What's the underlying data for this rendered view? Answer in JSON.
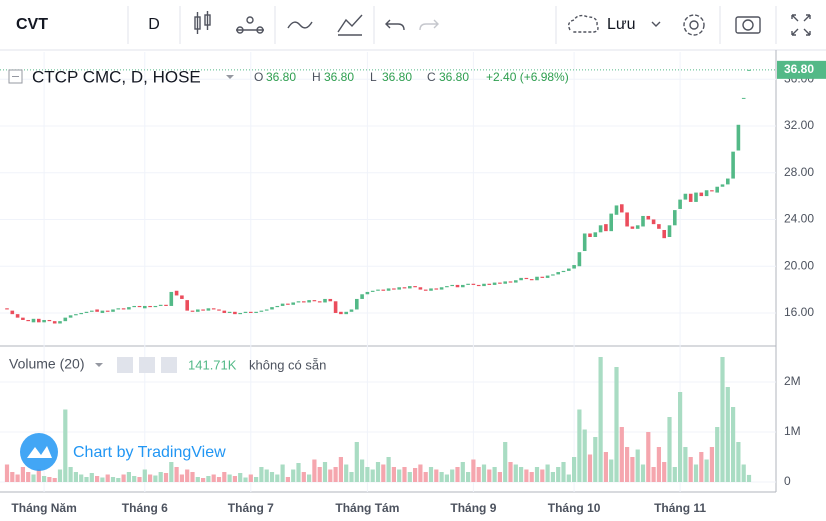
{
  "toolbar": {
    "symbol": "CVT",
    "interval": "D",
    "save": "Lưu"
  },
  "chart_data": {
    "type": "candlestick",
    "title": "CTCP CMC, D, HOSE",
    "legend": {
      "o": "O",
      "open": "36.80",
      "h": "H",
      "high": "36.80",
      "l": "L",
      "low": "36.80",
      "c": "C",
      "close": "36.80",
      "change": "+2.40 (+6.98%)"
    },
    "last_price_label": "36.80",
    "up_color": "#53b987",
    "down_color": "#eb4d5c",
    "categories": [
      null,
      null,
      null,
      null,
      null,
      null,
      null,
      "Tháng Năm",
      null,
      null,
      null,
      null,
      null,
      null,
      null,
      null,
      null,
      null,
      null,
      null,
      null,
      null,
      null,
      null,
      null,
      null,
      "Tháng 6",
      null,
      null,
      null,
      null,
      null,
      null,
      null,
      null,
      null,
      null,
      null,
      null,
      null,
      null,
      null,
      null,
      null,
      null,
      null,
      "Tháng 7",
      null,
      null,
      null,
      null,
      null,
      null,
      null,
      null,
      null,
      null,
      null,
      null,
      null,
      null,
      null,
      null,
      null,
      null,
      null,
      null,
      null,
      "Tháng Tám",
      null,
      null,
      null,
      null,
      null,
      null,
      null,
      null,
      null,
      null,
      null,
      null,
      null,
      null,
      null,
      null,
      null,
      null,
      null,
      "Tháng 9",
      null,
      null,
      null,
      null,
      null,
      null,
      null,
      null,
      null,
      null,
      null,
      null,
      null,
      null,
      null,
      null,
      null,
      null,
      "Tháng 10",
      null,
      null,
      null,
      null,
      null,
      null,
      null,
      null,
      null,
      null,
      null,
      null,
      null,
      null,
      null,
      null,
      null,
      null,
      null,
      "Tháng 11",
      null,
      null,
      null,
      null,
      null,
      null,
      null,
      null,
      null,
      null,
      null,
      null,
      null
    ],
    "open": [
      16.4,
      16.2,
      15.9,
      15.6,
      15.4,
      15.2,
      15.5,
      15.2,
      15.4,
      15.3,
      15.1,
      15.3,
      15.6,
      15.8,
      15.9,
      16.0,
      16.1,
      16.3,
      16.0,
      16.2,
      16.1,
      16.3,
      16.4,
      16.3,
      16.5,
      16.6,
      16.4,
      16.6,
      16.5,
      16.6,
      16.7,
      16.6,
      17.9,
      17.5,
      17.1,
      16.2,
      16.1,
      16.3,
      16.2,
      16.4,
      16.3,
      16.2,
      16.0,
      16.1,
      15.9,
      16.0,
      16.1,
      16.0,
      16.1,
      16.2,
      16.3,
      16.5,
      16.6,
      16.8,
      16.7,
      16.9,
      17.0,
      16.9,
      17.1,
      17.0,
      16.9,
      17.2,
      17.0,
      16.1,
      15.9,
      16.1,
      16.3,
      17.2,
      17.6,
      17.8,
      17.9,
      18.0,
      17.9,
      18.1,
      18.0,
      18.2,
      18.1,
      18.3,
      18.2,
      18.0,
      17.9,
      18.1,
      18.0,
      18.2,
      18.3,
      18.4,
      18.2,
      18.4,
      18.5,
      18.4,
      18.3,
      18.5,
      18.4,
      18.6,
      18.5,
      18.7,
      18.6,
      18.8,
      19.0,
      18.9,
      18.8,
      19.1,
      19.0,
      19.2,
      19.3,
      19.5,
      19.6,
      19.8,
      20.0,
      21.3,
      22.8,
      22.5,
      22.9,
      23.6,
      23.0,
      24.4,
      25.3,
      24.6,
      23.4,
      23.2,
      23.4,
      24.3,
      24.0,
      23.6,
      23.1,
      22.5,
      23.5,
      24.9,
      25.7,
      26.2,
      25.5,
      26.3,
      26.0,
      26.5,
      26.3,
      26.8,
      27.0,
      27.5,
      29.9,
      34.4,
      36.8
    ],
    "close": [
      16.3,
      15.9,
      15.6,
      15.4,
      15.3,
      15.5,
      15.2,
      15.4,
      15.3,
      15.1,
      15.3,
      15.6,
      15.8,
      15.9,
      16.0,
      16.1,
      16.2,
      16.1,
      16.2,
      16.1,
      16.3,
      16.4,
      16.3,
      16.5,
      16.6,
      16.5,
      16.6,
      16.5,
      16.6,
      16.7,
      16.6,
      17.8,
      17.5,
      17.2,
      16.2,
      16.1,
      16.3,
      16.2,
      16.4,
      16.3,
      16.2,
      16.0,
      16.1,
      15.9,
      16.0,
      16.1,
      16.0,
      16.1,
      16.2,
      16.3,
      16.5,
      16.6,
      16.8,
      16.7,
      16.9,
      17.0,
      16.9,
      17.1,
      17.0,
      16.9,
      17.2,
      17.0,
      16.0,
      15.9,
      16.1,
      16.3,
      17.2,
      17.6,
      17.8,
      17.9,
      18.0,
      17.9,
      18.1,
      18.0,
      18.2,
      18.1,
      18.3,
      18.2,
      18.0,
      17.9,
      18.1,
      18.0,
      18.2,
      18.3,
      18.4,
      18.2,
      18.4,
      18.5,
      18.4,
      18.3,
      18.5,
      18.4,
      18.6,
      18.5,
      18.7,
      18.6,
      18.8,
      19.0,
      18.9,
      18.8,
      19.1,
      19.0,
      19.2,
      19.3,
      19.5,
      19.6,
      19.8,
      20.1,
      21.2,
      22.8,
      22.5,
      22.9,
      23.5,
      23.0,
      24.5,
      25.2,
      24.6,
      23.4,
      23.2,
      23.5,
      24.3,
      24.0,
      23.6,
      23.2,
      22.4,
      23.5,
      24.8,
      25.7,
      26.2,
      25.5,
      26.3,
      26.0,
      26.5,
      26.4,
      26.8,
      27.0,
      27.5,
      29.8,
      32.1,
      34.4,
      36.8
    ],
    "ylim": [
      13.26,
      38.07
    ],
    "yticks": [
      {
        "value": 16,
        "label": "16.00"
      },
      {
        "value": 20,
        "label": "20.00"
      },
      {
        "value": 24,
        "label": "24.00"
      },
      {
        "value": 28,
        "label": "28.00"
      },
      {
        "value": 32,
        "label": "32.00"
      },
      {
        "value": 36,
        "label": "36.00"
      }
    ],
    "volume": {
      "title": "Volume (20)",
      "last": "141.71K",
      "status": "không có sẵn",
      "up_color": "#a9dcc3",
      "down_color": "#f5a6ae",
      "values": [
        350000,
        200000,
        150000,
        300000,
        200000,
        150000,
        250000,
        120000,
        100000,
        80000,
        250000,
        1450000,
        300000,
        200000,
        150000,
        100000,
        180000,
        120000,
        90000,
        150000,
        100000,
        80000,
        150000,
        200000,
        120000,
        100000,
        250000,
        150000,
        130000,
        200000,
        180000,
        400000,
        300000,
        150000,
        250000,
        200000,
        100000,
        80000,
        120000,
        150000,
        100000,
        200000,
        150000,
        120000,
        180000,
        90000,
        150000,
        100000,
        300000,
        250000,
        200000,
        150000,
        350000,
        100000,
        250000,
        380000,
        200000,
        150000,
        450000,
        300000,
        400000,
        250000,
        300000,
        500000,
        350000,
        200000,
        800000,
        450000,
        300000,
        250000,
        400000,
        350000,
        500000,
        300000,
        250000,
        300000,
        200000,
        280000,
        350000,
        200000,
        300000,
        250000,
        200000,
        150000,
        250000,
        300000,
        400000,
        200000,
        450000,
        300000,
        350000,
        250000,
        300000,
        200000,
        800000,
        400000,
        350000,
        300000,
        250000,
        200000,
        300000,
        250000,
        350000,
        200000,
        300000,
        400000,
        150000,
        500000,
        1450000,
        1050000,
        550000,
        900000,
        2500000,
        600000,
        450000,
        2300000,
        1100000,
        700000,
        500000,
        650000,
        350000,
        1000000,
        300000,
        700000,
        400000,
        1300000,
        300000,
        1800000,
        700000,
        500000,
        350000,
        600000,
        450000,
        700000,
        1100000,
        2500000,
        1900000,
        1500000,
        800000,
        350000,
        141710
      ],
      "ylim": [
        -200000,
        2700000
      ],
      "yticks": [
        0,
        {
          "value": 1000000,
          "label": "1M"
        },
        {
          "value": 2000000,
          "label": "2M"
        }
      ]
    },
    "grid": true,
    "watermark": "Chart by TradingView"
  }
}
